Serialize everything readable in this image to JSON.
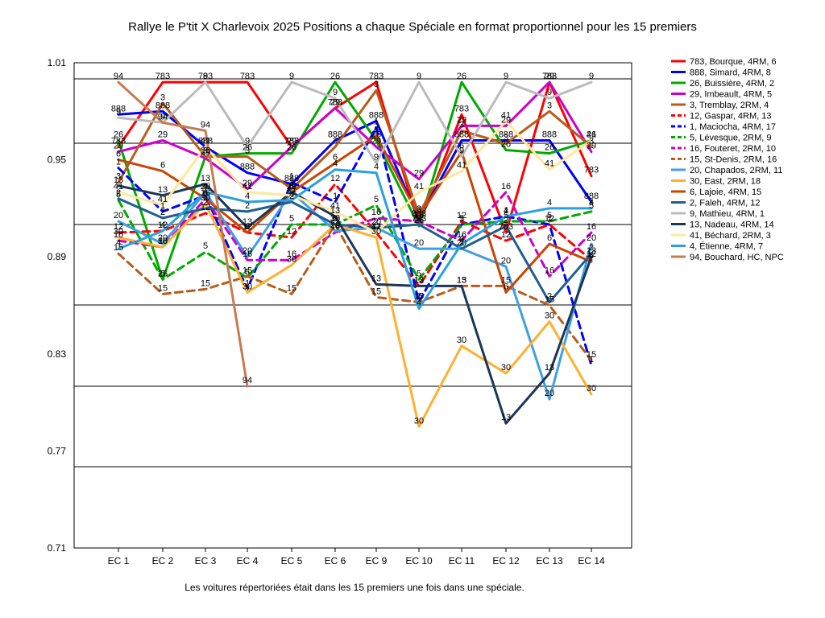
{
  "chart_data": {
    "type": "line",
    "title": "Rallye le P'tit X Charlevoix 2025  Positions a chaque Spéciale en format proportionnel pour les 15 premiers",
    "footnote": "Les voitures répertoriées était dans les 15 premiers une fois dans une spéciale.",
    "categories": [
      "EC 1",
      "EC 2",
      "EC 3",
      "EC 4",
      "EC 5",
      "EC 6",
      "EC 9",
      "EC 10",
      "EC 11",
      "EC 12",
      "EC 13",
      "EC 14"
    ],
    "y_ticks": [
      "0.71",
      "0.77",
      "0.83",
      "0.89",
      "0.95",
      "1.01"
    ],
    "ylim": [
      0.71,
      1.01
    ],
    "grid": true,
    "legend_position": "right",
    "series": [
      {
        "name": "783, Bourque, 4RM, 6",
        "label": "783",
        "color": "#ff0000",
        "dash": false,
        "values": [
          0.958,
          0.998,
          0.998,
          0.998,
          0.958,
          0.982,
          0.998,
          0.91,
          0.978,
          0.905,
          0.998,
          0.94
        ]
      },
      {
        "name": "888, Simard, 4RM, 8",
        "label": "888",
        "color": "#0000ff",
        "dash": false,
        "values": [
          0.978,
          0.98,
          0.958,
          0.942,
          0.935,
          0.962,
          0.974,
          0.913,
          0.962,
          0.962,
          0.962,
          0.924
        ]
      },
      {
        "name": "26, Buissière, 4RM, 2",
        "label": "26",
        "color": "#00aa00",
        "dash": false,
        "values": [
          0.962,
          0.876,
          0.952,
          0.954,
          0.954,
          0.998,
          0.962,
          0.909,
          0.998,
          0.956,
          0.954,
          0.962
        ]
      },
      {
        "name": "29, Imbeault, 4RM, 5",
        "label": "29",
        "color": "#cc00cc",
        "dash": false,
        "values": [
          0.955,
          0.962,
          0.951,
          0.932,
          0.958,
          0.982,
          0.958,
          0.938,
          0.971,
          0.971,
          0.998,
          0.955
        ]
      },
      {
        "name": "3, Tremblay, 2RM, 4",
        "label": "3",
        "color": "#b85c1c",
        "dash": false,
        "values": [
          0.936,
          0.985,
          0.952,
          0.952,
          0.932,
          0.958,
          0.993,
          0.916,
          0.968,
          0.96,
          0.98,
          0.958
        ]
      },
      {
        "name": "12, Gaspar, 4RM, 13",
        "label": "12",
        "color": "#ff0000",
        "dash": true,
        "values": [
          0.905,
          0.906,
          0.917,
          0.905,
          0.902,
          0.935,
          0.905,
          0.872,
          0.912,
          0.9,
          0.91,
          0.888
        ]
      },
      {
        "name": "1, Maciocha, 4RM, 17",
        "label": "1",
        "color": "#0000ff",
        "dash": true,
        "values": [
          0.945,
          0.918,
          0.928,
          0.87,
          0.936,
          0.924,
          0.97,
          0.862,
          0.91,
          0.915,
          0.91,
          0.823
        ]
      },
      {
        "name": "5, Lévesque, 2RM, 9",
        "label": "5",
        "color": "#00aa00",
        "dash": true,
        "values": [
          0.925,
          0.876,
          0.893,
          0.877,
          0.91,
          0.91,
          0.922,
          0.876,
          0.91,
          0.912,
          0.912,
          0.918
        ]
      },
      {
        "name": "16, Fouteret, 2RM, 10",
        "label": "16",
        "color": "#cc00cc",
        "dash": true,
        "values": [
          0.9,
          0.896,
          0.926,
          0.888,
          0.888,
          0.905,
          0.914,
          0.912,
          0.9,
          0.93,
          0.878,
          0.905
        ]
      },
      {
        "name": "15, St-Denis, 2RM, 16",
        "label": "15",
        "color": "#b85c1c",
        "dash": true,
        "values": [
          0.892,
          0.867,
          0.87,
          0.878,
          0.867,
          0.91,
          0.865,
          0.862,
          0.872,
          0.872,
          0.86,
          0.826
        ]
      },
      {
        "name": "20, Chapados, 2RM, 11",
        "label": "20",
        "color": "#3f9fe6",
        "dash": false,
        "values": [
          0.912,
          0.898,
          0.93,
          0.89,
          0.93,
          0.906,
          0.908,
          0.895,
          0.895,
          0.884,
          0.802,
          0.898
        ]
      },
      {
        "name": "30, East, 2RM, 18",
        "label": "30",
        "color": "#ffb02e",
        "dash": false,
        "values": [
          0.902,
          0.896,
          0.923,
          0.868,
          0.885,
          0.91,
          0.902,
          0.785,
          0.835,
          0.818,
          0.85,
          0.805
        ]
      },
      {
        "name": "6, Lajoie, 4RM, 15",
        "label": "6",
        "color": "#cc4400",
        "dash": false,
        "values": [
          0.95,
          0.943,
          0.926,
          0.905,
          0.93,
          0.948,
          0.965,
          0.915,
          0.955,
          0.868,
          0.898,
          0.887
        ]
      },
      {
        "name": "2, Faleh, 4RM, 12",
        "label": "2",
        "color": "#1f5f8f",
        "dash": false,
        "values": [
          0.926,
          0.914,
          0.92,
          0.918,
          0.924,
          0.91,
          0.908,
          0.91,
          0.895,
          0.909,
          0.862,
          0.892
        ]
      },
      {
        "name": "9, Mathieu, 4RM, 1",
        "label": "9",
        "color": "#bbbbbb",
        "dash": false,
        "values": [
          0.976,
          0.973,
          0.998,
          0.958,
          0.998,
          0.988,
          0.948,
          0.998,
          0.952,
          0.998,
          0.988,
          0.998
        ]
      },
      {
        "name": "13, Nadeau, 4RM, 14",
        "label": "13",
        "color": "#1c3658",
        "dash": false,
        "values": [
          0.934,
          0.928,
          0.935,
          0.908,
          0.93,
          0.915,
          0.873,
          0.872,
          0.872,
          0.787,
          0.818,
          0.89
        ]
      },
      {
        "name": "41, Béchard, 2RM, 3",
        "label": "41",
        "color": "#ffe89a",
        "dash": false,
        "values": [
          0.93,
          0.922,
          0.958,
          0.93,
          0.928,
          0.918,
          0.905,
          0.93,
          0.943,
          0.974,
          0.944,
          0.962
        ]
      },
      {
        "name": "4, Étienne, 4RM, 7",
        "label": "4",
        "color": "#29a0e0",
        "dash": false,
        "values": [
          0.895,
          0.906,
          0.93,
          0.924,
          0.925,
          0.944,
          0.942,
          0.858,
          0.898,
          0.915,
          0.92,
          0.92
        ]
      },
      {
        "name": "94, Bouchard, HC,  NPC",
        "label": "94",
        "color": "#c87a50",
        "dash": false,
        "values": [
          0.998,
          0.973,
          0.968,
          0.81,
          null,
          null,
          null,
          null,
          null,
          null,
          null,
          null
        ]
      }
    ]
  }
}
